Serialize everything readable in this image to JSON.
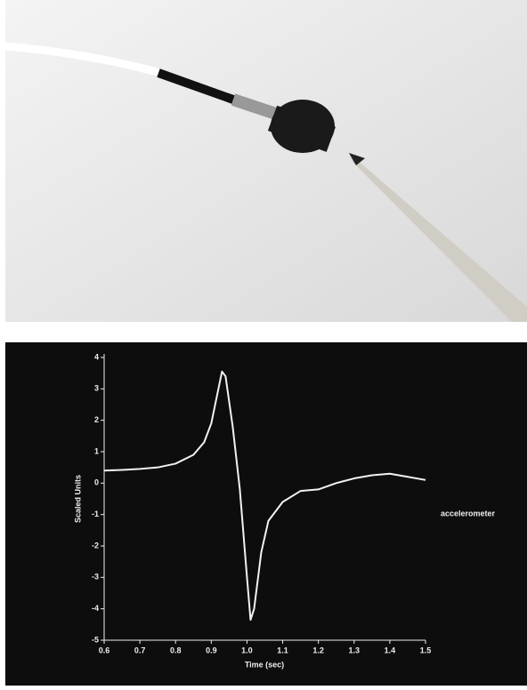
{
  "chart_data": {
    "type": "line",
    "x_label": "Time (sec)",
    "y_label": "Scaled Units",
    "x": [
      0.6,
      0.65,
      0.7,
      0.75,
      0.8,
      0.85,
      0.88,
      0.9,
      0.92,
      0.93,
      0.94,
      0.96,
      0.98,
      1.0,
      1.01,
      1.02,
      1.04,
      1.06,
      1.1,
      1.15,
      1.2,
      1.25,
      1.3,
      1.35,
      1.4,
      1.45,
      1.5
    ],
    "series": [
      {
        "name": "accelerometer",
        "color": "#f2f2f2",
        "values": [
          0.4,
          0.42,
          0.45,
          0.5,
          0.62,
          0.9,
          1.3,
          1.9,
          3.0,
          3.55,
          3.4,
          1.8,
          -0.2,
          -3,
          -4.35,
          -4.0,
          -2.2,
          -1.2,
          -0.6,
          -0.25,
          -0.2,
          0.0,
          0.15,
          0.25,
          0.3,
          0.2,
          0.1
        ]
      }
    ],
    "xlim": [
      0.6,
      1.5
    ],
    "xticks": [
      0.6,
      0.7,
      0.8,
      0.9,
      {
        "value": 1,
        "label": "1.0"
      },
      1.1,
      1.2,
      1.3,
      1.4,
      1.5
    ],
    "ylim": [
      -5,
      4
    ],
    "yticks": [
      -5,
      -4,
      -3,
      -2,
      -1,
      0,
      1,
      2,
      3,
      4
    ]
  }
}
